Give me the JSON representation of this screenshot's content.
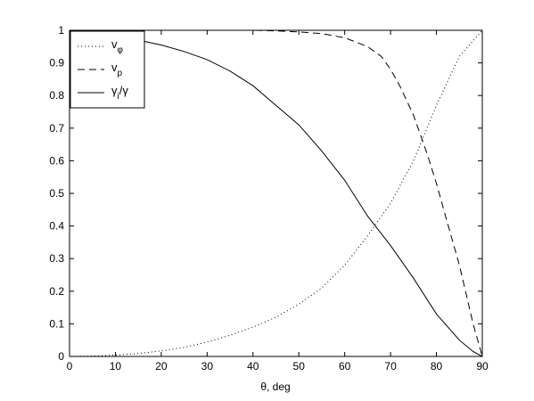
{
  "chart_data": {
    "type": "line",
    "title": "",
    "xlabel": "θ, deg",
    "ylabel": "",
    "xlim": [
      0,
      90
    ],
    "ylim": [
      0,
      1
    ],
    "x_ticks": [
      0,
      10,
      20,
      30,
      40,
      50,
      60,
      70,
      80,
      90
    ],
    "y_ticks": [
      0,
      0.1,
      0.2,
      0.3,
      0.4,
      0.5,
      0.6,
      0.7,
      0.8,
      0.9,
      1
    ],
    "grid": false,
    "legend_position": "top-left",
    "series": [
      {
        "name": "vφ",
        "legend_main": "v",
        "legend_sub": "φ",
        "style": "dotted",
        "x": [
          0,
          5,
          10,
          15,
          20,
          25,
          30,
          35,
          40,
          45,
          50,
          55,
          60,
          65,
          70,
          75,
          80,
          85,
          90
        ],
        "y": [
          0.0,
          0.001,
          0.004,
          0.009,
          0.017,
          0.028,
          0.044,
          0.065,
          0.09,
          0.12,
          0.16,
          0.21,
          0.28,
          0.37,
          0.47,
          0.6,
          0.77,
          0.92,
          1.0
        ]
      },
      {
        "name": "vp",
        "legend_main": "v",
        "legend_sub": "p",
        "style": "dashed",
        "x": [
          0,
          10,
          20,
          30,
          40,
          45,
          50,
          55,
          60,
          65,
          68,
          70,
          72,
          75,
          78,
          80,
          82,
          85,
          88,
          90
        ],
        "y": [
          1.0,
          1.0,
          1.0,
          1.0,
          1.0,
          0.998,
          0.995,
          0.99,
          0.977,
          0.95,
          0.92,
          0.88,
          0.83,
          0.74,
          0.62,
          0.53,
          0.43,
          0.28,
          0.1,
          0.0
        ]
      },
      {
        "name": "γi/γ",
        "legend_main": "γ",
        "legend_sub": "i",
        "legend_tail": "/γ",
        "style": "solid",
        "x": [
          0,
          5,
          10,
          15,
          20,
          25,
          30,
          35,
          40,
          45,
          50,
          55,
          60,
          65,
          70,
          75,
          80,
          85,
          88,
          90
        ],
        "y": [
          0.99,
          0.988,
          0.982,
          0.97,
          0.955,
          0.935,
          0.91,
          0.875,
          0.83,
          0.77,
          0.71,
          0.63,
          0.54,
          0.43,
          0.34,
          0.24,
          0.13,
          0.05,
          0.015,
          0.0
        ]
      }
    ]
  }
}
